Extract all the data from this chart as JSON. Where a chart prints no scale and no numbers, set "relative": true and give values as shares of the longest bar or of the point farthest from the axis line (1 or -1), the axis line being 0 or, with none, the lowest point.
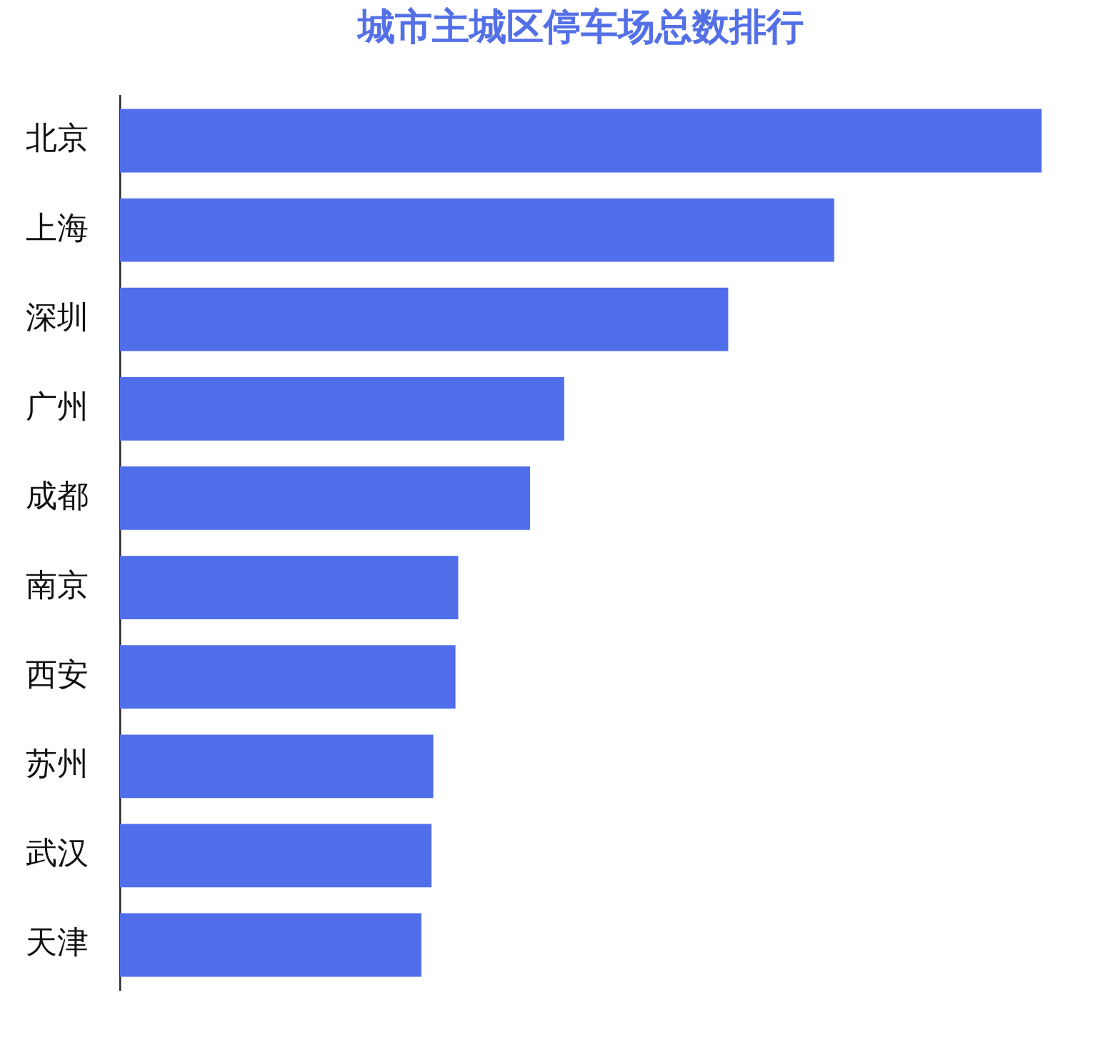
{
  "chart_data": {
    "type": "bar",
    "title": "城市主城区停车场总数排行",
    "orientation": "horizontal",
    "relative": true,
    "categories": [
      "北京",
      "上海",
      "深圳",
      "广州",
      "成都",
      "南京",
      "西安",
      "苏州",
      "武汉",
      "天津"
    ],
    "values": [
      1,
      0.775,
      0.66,
      0.482,
      0.445,
      0.367,
      0.364,
      0.34,
      0.338,
      0.327
    ],
    "color": "#506eea"
  }
}
